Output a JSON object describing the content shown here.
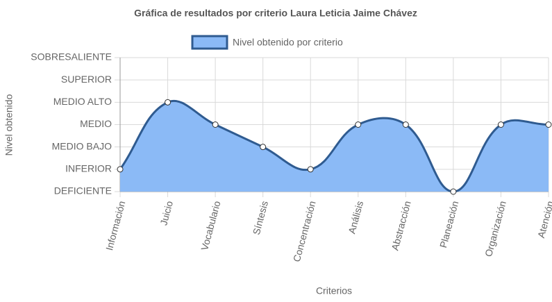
{
  "chart_data": {
    "type": "line",
    "title": "Gráfica de resultados por criterio Laura Leticia Jaime Chávez",
    "x_label": "Criterios",
    "y_label": "Nivel obtenido",
    "categories": [
      "Información",
      "Juicio",
      "Vocabulario",
      "Síntesis",
      "Concentración",
      "Análisis",
      "Abstracción",
      "Planeación",
      "Organización",
      "Atención"
    ],
    "series": [
      {
        "name": "Nivel obtenido por criterio",
        "color": "#2f5b90",
        "fill": "#8bbaf6",
        "values": [
          1,
          4,
          3,
          2,
          1,
          3,
          3,
          0,
          3,
          3
        ]
      }
    ],
    "ylim": [
      0,
      6
    ],
    "yticks": [
      {
        "value": 0,
        "label": "DEFICIENTE"
      },
      {
        "value": 1,
        "label": "INFERIOR"
      },
      {
        "value": 2,
        "label": "MEDIO BAJO"
      },
      {
        "value": 3,
        "label": "MEDIO"
      },
      {
        "value": 4,
        "label": "MEDIO ALTO"
      },
      {
        "value": 5,
        "label": "SUPERIOR"
      },
      {
        "value": 6,
        "label": "SOBRESALIENTE"
      }
    ],
    "grid": true
  }
}
